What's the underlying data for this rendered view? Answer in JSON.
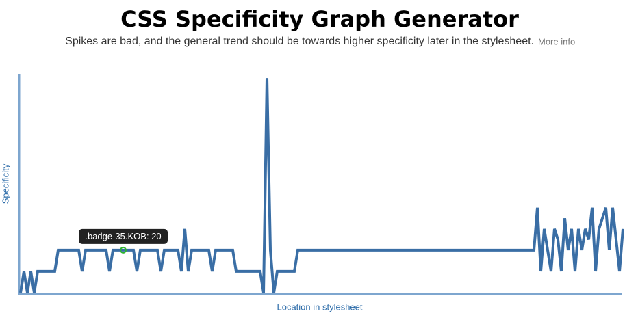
{
  "chart_data": {
    "type": "line",
    "title": "CSS Specificity Graph Generator",
    "subtitle": "Spikes are bad, and the general trend should be towards higher specificity later in the stylesheet.",
    "link": "More info",
    "x_label": "Location in stylesheet",
    "y_label": "Specificity",
    "tooltip": ".badge-35.KOB: 20",
    "color": "#3a6ea5",
    "ylim": [
      0,
      103
    ],
    "values": [
      0,
      10,
      0,
      10,
      0,
      10,
      10,
      10,
      10,
      10,
      10,
      20,
      20,
      20,
      20,
      20,
      20,
      20,
      10,
      20,
      20,
      20,
      20,
      20,
      20,
      20,
      10,
      20,
      20,
      20,
      20,
      20,
      20,
      20,
      10,
      20,
      20,
      20,
      20,
      20,
      20,
      10,
      20,
      20,
      20,
      20,
      20,
      10,
      30,
      10,
      20,
      20,
      20,
      20,
      20,
      20,
      10,
      20,
      20,
      20,
      20,
      20,
      20,
      10,
      10,
      10,
      10,
      10,
      10,
      10,
      10,
      0,
      101,
      20,
      0,
      10,
      10,
      10,
      10,
      10,
      10,
      20,
      20,
      20,
      20,
      20,
      20,
      20,
      20,
      20,
      20,
      20,
      20,
      20,
      20,
      20,
      20,
      20,
      20,
      20,
      20,
      20,
      20,
      20,
      20,
      20,
      20,
      20,
      20,
      20,
      20,
      20,
      20,
      20,
      20,
      20,
      20,
      20,
      20,
      20,
      20,
      20,
      20,
      20,
      20,
      20,
      20,
      20,
      20,
      20,
      20,
      20,
      20,
      20,
      20,
      20,
      20,
      20,
      20,
      20,
      20,
      20,
      20,
      20,
      20,
      20,
      20,
      20,
      20,
      20,
      20,
      40,
      10,
      30,
      20,
      10,
      30,
      25,
      10,
      35,
      20,
      30,
      10,
      30,
      20,
      30,
      25,
      40,
      10,
      30,
      35,
      40,
      20,
      40,
      25,
      10,
      30
    ]
  }
}
